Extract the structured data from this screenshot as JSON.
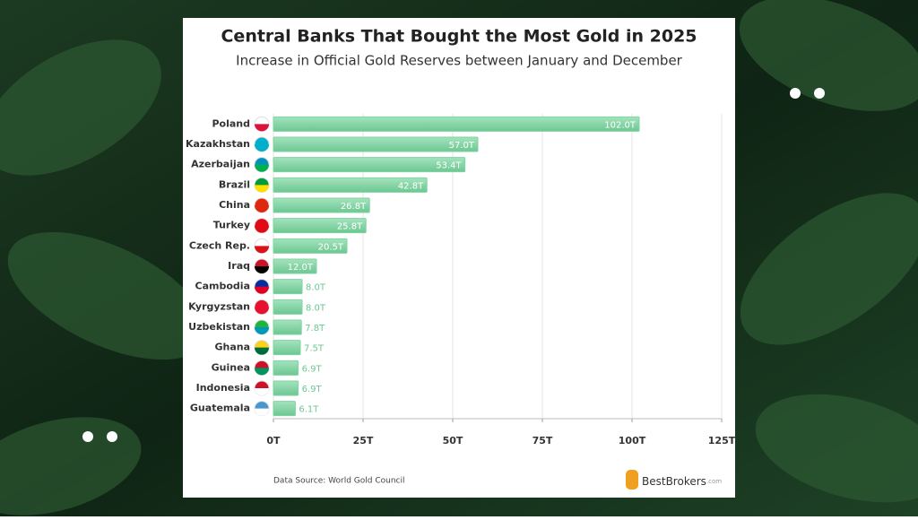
{
  "chart_data": {
    "type": "bar",
    "orientation": "horizontal",
    "title": "Central Banks That Bought the Most Gold in 2025",
    "subtitle": "Increase in Official Gold Reserves between January and December",
    "categories": [
      "Poland",
      "Kazakhstan",
      "Azerbaijan",
      "Brazil",
      "China",
      "Turkey",
      "Czech Rep.",
      "Iraq",
      "Cambodia",
      "Kyrgyzstan",
      "Uzbekistan",
      "Ghana",
      "Guinea",
      "Indonesia",
      "Guatemala"
    ],
    "values": [
      102.0,
      57.0,
      53.4,
      42.8,
      26.8,
      25.8,
      20.5,
      12.0,
      8.0,
      8.0,
      7.8,
      7.5,
      6.9,
      6.9,
      6.1
    ],
    "value_labels": [
      "102.0T",
      "57.0T",
      "53.4T",
      "42.8T",
      "26.8T",
      "25.8T",
      "20.5T",
      "12.0T",
      "8.0T",
      "8.0T",
      "7.8T",
      "7.5T",
      "6.9T",
      "6.9T",
      "6.1T"
    ],
    "color": "#7fd4a2",
    "xlim": [
      0,
      125
    ],
    "xticks": [
      {
        "value": 0,
        "label": "0T"
      },
      {
        "value": 25,
        "label": "25T"
      },
      {
        "value": 50,
        "label": "50T"
      },
      {
        "value": 75,
        "label": "75T"
      },
      {
        "value": 100,
        "label": "100T"
      },
      {
        "value": 125,
        "label": "125T"
      }
    ],
    "grid": true,
    "source": "Data Source: World Gold Council",
    "brand": "BestBrokers",
    "brand_suffix": ".com"
  }
}
